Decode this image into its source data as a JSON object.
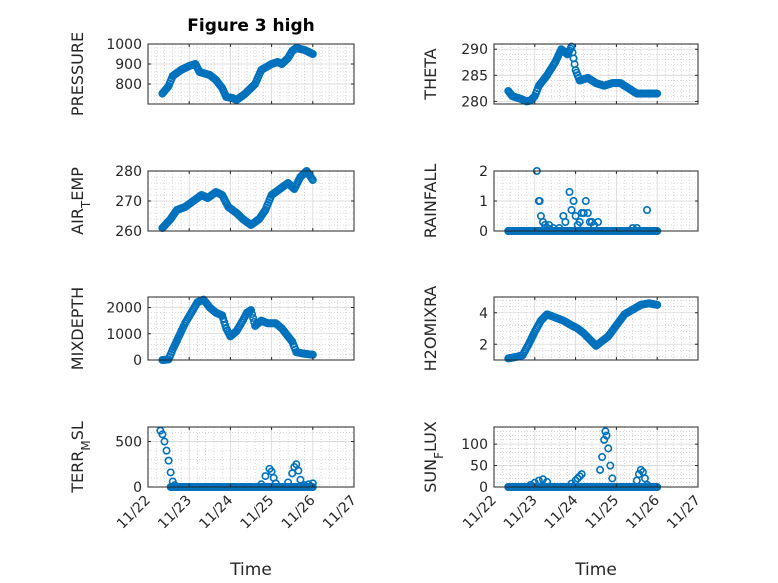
{
  "chart_data": [
    {
      "type": "scatter",
      "title": "Figure 3 high",
      "ylabel": "PRESSURE",
      "xlabel": "",
      "ylim": [
        700,
        1000
      ],
      "yticks": [
        800,
        900,
        1000
      ],
      "xlim": [
        0,
        5
      ],
      "xtick_labels": [
        "11/22",
        "11/23",
        "11/24",
        "11/25",
        "11/26",
        "11/27"
      ],
      "show_xticklabels": false,
      "grid": "minor",
      "keys": [
        [
          0.35,
          752
        ],
        [
          0.5,
          790
        ],
        [
          0.6,
          840
        ],
        [
          0.8,
          870
        ],
        [
          1.0,
          890
        ],
        [
          1.15,
          900
        ],
        [
          1.25,
          860
        ],
        [
          1.5,
          845
        ],
        [
          1.65,
          820
        ],
        [
          1.8,
          780
        ],
        [
          1.9,
          735
        ],
        [
          2.05,
          730
        ],
        [
          2.15,
          720
        ],
        [
          2.35,
          750
        ],
        [
          2.6,
          800
        ],
        [
          2.75,
          870
        ],
        [
          3.0,
          900
        ],
        [
          3.15,
          910
        ],
        [
          3.25,
          900
        ],
        [
          3.4,
          930
        ],
        [
          3.5,
          965
        ],
        [
          3.6,
          980
        ],
        [
          3.8,
          970
        ],
        [
          4.0,
          950
        ]
      ],
      "x": [],
      "y": []
    },
    {
      "type": "scatter",
      "title": "",
      "ylabel": "THETA",
      "xlabel": "",
      "ylim": [
        279.5,
        291
      ],
      "yticks": [
        280,
        285,
        290
      ],
      "xlim": [
        0,
        5
      ],
      "xtick_labels": [
        "11/22",
        "11/23",
        "11/24",
        "11/25",
        "11/26",
        "11/27"
      ],
      "show_xticklabels": false,
      "grid": "minor",
      "keys": [
        [
          0.35,
          282
        ],
        [
          0.45,
          281
        ],
        [
          0.65,
          280.5
        ],
        [
          0.8,
          280
        ],
        [
          0.9,
          280.2
        ],
        [
          1.0,
          281
        ],
        [
          1.1,
          283
        ],
        [
          1.3,
          285
        ],
        [
          1.5,
          287.5
        ],
        [
          1.65,
          290
        ],
        [
          1.8,
          289
        ],
        [
          1.9,
          290.5
        ],
        [
          2.0,
          286
        ],
        [
          2.1,
          284
        ],
        [
          2.3,
          284.5
        ],
        [
          2.5,
          283.5
        ],
        [
          2.7,
          283
        ],
        [
          2.9,
          283.5
        ],
        [
          3.1,
          283.5
        ],
        [
          3.3,
          282.5
        ],
        [
          3.5,
          281.5
        ],
        [
          3.8,
          281.5
        ],
        [
          4.0,
          281.5
        ]
      ],
      "x": [],
      "y": []
    },
    {
      "type": "scatter",
      "title": "",
      "ylabel": "AIR_TEMP",
      "xlabel": "",
      "ylim": [
        260,
        280
      ],
      "yticks": [
        260,
        270,
        280
      ],
      "xlim": [
        0,
        5
      ],
      "xtick_labels": [
        "11/22",
        "11/23",
        "11/24",
        "11/25",
        "11/26",
        "11/27"
      ],
      "show_xticklabels": false,
      "grid": "minor",
      "keys": [
        [
          0.35,
          261
        ],
        [
          0.55,
          264
        ],
        [
          0.7,
          267
        ],
        [
          0.9,
          268
        ],
        [
          1.1,
          270
        ],
        [
          1.3,
          272
        ],
        [
          1.45,
          271
        ],
        [
          1.65,
          273
        ],
        [
          1.8,
          272
        ],
        [
          1.95,
          268
        ],
        [
          2.15,
          266
        ],
        [
          2.3,
          264
        ],
        [
          2.5,
          262
        ],
        [
          2.7,
          264
        ],
        [
          2.85,
          267
        ],
        [
          3.0,
          272
        ],
        [
          3.2,
          274
        ],
        [
          3.4,
          276
        ],
        [
          3.55,
          274
        ],
        [
          3.7,
          278
        ],
        [
          3.85,
          280
        ],
        [
          4.0,
          277
        ]
      ],
      "x": [],
      "y": []
    },
    {
      "type": "scatter",
      "title": "",
      "ylabel": "RAINFALL",
      "xlabel": "",
      "ylim": [
        0,
        2
      ],
      "yticks": [
        0,
        1,
        2
      ],
      "xlim": [
        0,
        5
      ],
      "xtick_labels": [
        "11/22",
        "11/23",
        "11/24",
        "11/25",
        "11/26",
        "11/27"
      ],
      "show_xticklabels": false,
      "grid": "minor",
      "baseline": {
        "from": 0.35,
        "to": 4.0,
        "value": 0
      },
      "points": [
        [
          0.35,
          0
        ],
        [
          1.05,
          2.0
        ],
        [
          1.1,
          1.0
        ],
        [
          1.12,
          1.0
        ],
        [
          1.15,
          0.5
        ],
        [
          1.2,
          0.3
        ],
        [
          1.25,
          0.2
        ],
        [
          1.3,
          0.1
        ],
        [
          1.35,
          0.2
        ],
        [
          1.45,
          0.1
        ],
        [
          1.55,
          0.0
        ],
        [
          1.6,
          0.1
        ],
        [
          1.7,
          0.5
        ],
        [
          1.75,
          0.3
        ],
        [
          1.85,
          1.3
        ],
        [
          1.9,
          0.7
        ],
        [
          1.95,
          1.0
        ],
        [
          2.0,
          0.5
        ],
        [
          2.05,
          0.2
        ],
        [
          2.1,
          0.3
        ],
        [
          2.15,
          0.6
        ],
        [
          2.2,
          0.6
        ],
        [
          2.25,
          1.0
        ],
        [
          2.3,
          0.6
        ],
        [
          2.35,
          0.3
        ],
        [
          2.4,
          0.3
        ],
        [
          2.45,
          0.2
        ],
        [
          2.55,
          0.3
        ],
        [
          3.4,
          0.1
        ],
        [
          3.5,
          0.1
        ],
        [
          3.75,
          0.7
        ],
        [
          3.9,
          0.0
        ]
      ],
      "x": [],
      "y": []
    },
    {
      "type": "scatter",
      "title": "",
      "ylabel": "MIXDEPTH",
      "xlabel": "",
      "ylim": [
        0,
        2400
      ],
      "yticks": [
        0,
        1000,
        2000
      ],
      "xlim": [
        0,
        5
      ],
      "xtick_labels": [
        "11/22",
        "11/23",
        "11/24",
        "11/25",
        "11/26",
        "11/27"
      ],
      "show_xticklabels": false,
      "grid": "minor",
      "keys": [
        [
          0.35,
          0
        ],
        [
          0.5,
          20
        ],
        [
          0.6,
          400
        ],
        [
          0.75,
          900
        ],
        [
          0.9,
          1400
        ],
        [
          1.05,
          1800
        ],
        [
          1.2,
          2200
        ],
        [
          1.35,
          2300
        ],
        [
          1.5,
          2000
        ],
        [
          1.65,
          1800
        ],
        [
          1.8,
          1700
        ],
        [
          1.9,
          1200
        ],
        [
          2.0,
          900
        ],
        [
          2.15,
          1100
        ],
        [
          2.3,
          1500
        ],
        [
          2.4,
          1800
        ],
        [
          2.5,
          1900
        ],
        [
          2.6,
          1300
        ],
        [
          2.75,
          1500
        ],
        [
          2.9,
          1400
        ],
        [
          3.1,
          1400
        ],
        [
          3.25,
          1200
        ],
        [
          3.4,
          900
        ],
        [
          3.5,
          700
        ],
        [
          3.6,
          300
        ],
        [
          3.75,
          250
        ],
        [
          4.0,
          200
        ]
      ],
      "x": [],
      "y": []
    },
    {
      "type": "scatter",
      "title": "",
      "ylabel": "H2OMIXRA",
      "xlabel": "",
      "ylim": [
        1,
        5
      ],
      "yticks": [
        2,
        4
      ],
      "xlim": [
        0,
        5
      ],
      "xtick_labels": [
        "11/22",
        "11/23",
        "11/24",
        "11/25",
        "11/26",
        "11/27"
      ],
      "show_xticklabels": false,
      "grid": "minor",
      "keys": [
        [
          0.35,
          1.1
        ],
        [
          0.55,
          1.2
        ],
        [
          0.7,
          1.3
        ],
        [
          0.85,
          2.0
        ],
        [
          1.0,
          2.8
        ],
        [
          1.15,
          3.5
        ],
        [
          1.3,
          3.9
        ],
        [
          1.5,
          3.7
        ],
        [
          1.7,
          3.5
        ],
        [
          1.9,
          3.2
        ],
        [
          2.05,
          3.0
        ],
        [
          2.2,
          2.7
        ],
        [
          2.35,
          2.3
        ],
        [
          2.5,
          1.9
        ],
        [
          2.65,
          2.2
        ],
        [
          2.8,
          2.5
        ],
        [
          3.0,
          3.2
        ],
        [
          3.2,
          3.9
        ],
        [
          3.4,
          4.2
        ],
        [
          3.6,
          4.5
        ],
        [
          3.8,
          4.6
        ],
        [
          4.0,
          4.5
        ]
      ],
      "x": [],
      "y": []
    },
    {
      "type": "scatter",
      "title": "",
      "ylabel": "TERR_MSL",
      "xlabel": "Time",
      "ylim": [
        0,
        660
      ],
      "yticks": [
        0,
        500
      ],
      "xlim": [
        0,
        5
      ],
      "xtick_labels": [
        "11/22",
        "11/23",
        "11/24",
        "11/25",
        "11/26",
        "11/27"
      ],
      "show_xticklabels": true,
      "grid": "minor",
      "baseline": {
        "from": 0.55,
        "to": 4.0,
        "value": 0
      },
      "points": [
        [
          0.3,
          620
        ],
        [
          0.35,
          580
        ],
        [
          0.4,
          500
        ],
        [
          0.45,
          400
        ],
        [
          0.5,
          290
        ],
        [
          0.55,
          160
        ],
        [
          0.6,
          60
        ],
        [
          0.65,
          20
        ],
        [
          2.75,
          30
        ],
        [
          2.85,
          120
        ],
        [
          2.95,
          200
        ],
        [
          3.0,
          170
        ],
        [
          3.05,
          100
        ],
        [
          3.1,
          40
        ],
        [
          3.4,
          50
        ],
        [
          3.5,
          150
        ],
        [
          3.55,
          220
        ],
        [
          3.6,
          250
        ],
        [
          3.65,
          180
        ],
        [
          3.7,
          80
        ],
        [
          3.8,
          20
        ],
        [
          3.9,
          30
        ],
        [
          4.0,
          40
        ]
      ],
      "x": [],
      "y": []
    },
    {
      "type": "scatter",
      "title": "",
      "ylabel": "SUN_FLUX",
      "xlabel": "Time",
      "ylim": [
        0,
        140
      ],
      "yticks": [
        0,
        50,
        100
      ],
      "xlim": [
        0,
        5
      ],
      "xtick_labels": [
        "11/22",
        "11/23",
        "11/24",
        "11/25",
        "11/26",
        "11/27"
      ],
      "show_xticklabels": true,
      "grid": "minor",
      "baseline": {
        "from": 0.35,
        "to": 4.0,
        "value": 0
      },
      "points": [
        [
          0.9,
          5
        ],
        [
          1.0,
          10
        ],
        [
          1.1,
          15
        ],
        [
          1.2,
          18
        ],
        [
          1.3,
          12
        ],
        [
          1.9,
          8
        ],
        [
          2.0,
          15
        ],
        [
          2.05,
          20
        ],
        [
          2.1,
          25
        ],
        [
          2.15,
          30
        ],
        [
          2.6,
          40
        ],
        [
          2.65,
          70
        ],
        [
          2.7,
          110
        ],
        [
          2.73,
          130
        ],
        [
          2.76,
          120
        ],
        [
          2.8,
          90
        ],
        [
          2.85,
          50
        ],
        [
          2.9,
          20
        ],
        [
          3.5,
          15
        ],
        [
          3.55,
          30
        ],
        [
          3.6,
          40
        ],
        [
          3.65,
          35
        ],
        [
          3.7,
          20
        ],
        [
          3.75,
          5
        ]
      ],
      "x": [],
      "y": []
    }
  ]
}
